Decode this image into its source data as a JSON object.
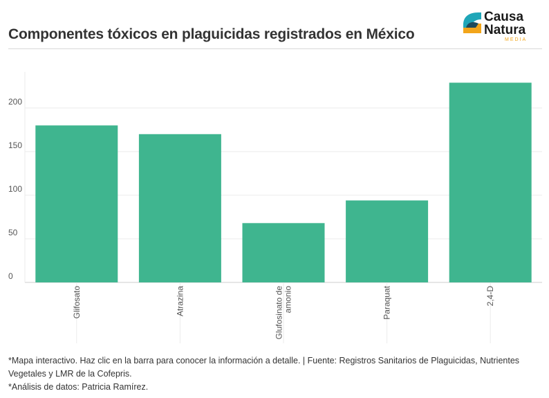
{
  "header": {
    "title": "Componentes tóxicos en plaguicidas registrados en México"
  },
  "logo": {
    "line1": "Causa",
    "line2": "Natura",
    "subline": "MEDIA",
    "colors": {
      "teal": "#1fa6b8",
      "dark": "#1d4a5c",
      "orange": "#f2a51a"
    }
  },
  "chart_data": {
    "type": "bar",
    "categories": [
      "Glifosato",
      "Atrazina",
      "Glufosinato de amonio",
      "Paraquat",
      "2,4-D"
    ],
    "category_labels": [
      [
        "Glifosato"
      ],
      [
        "Atrazina"
      ],
      [
        "Glufosinato de",
        "amonio"
      ],
      [
        "Paraquat"
      ],
      [
        "2,4-D"
      ]
    ],
    "values": [
      180,
      170,
      68,
      94,
      229
    ],
    "yticks": [
      0,
      50,
      100,
      150,
      200
    ],
    "ylim": [
      0,
      240
    ],
    "bar_color": "#3fb58f",
    "grid": true,
    "title": "",
    "xlabel": "",
    "ylabel": ""
  },
  "footnotes": [
    "*Mapa interactivo. Haz clic en la barra para conocer la información a detalle. | Fuente: Registros Sanitarios de Plaguicidas, Nutrientes Vegetales y LMR de la Cofepris.",
    "*Análisis de datos: Patricia Ramírez."
  ]
}
